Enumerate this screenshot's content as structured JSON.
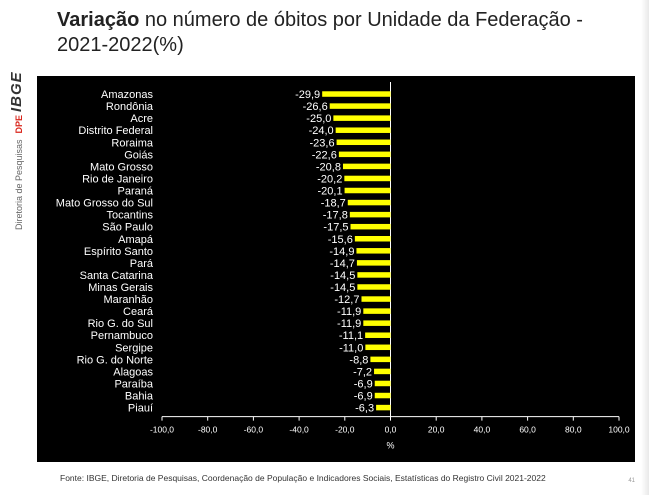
{
  "header": {
    "title_bold": "Variação",
    "title_rest": " no número de óbitos por Unidade da Federação - 2021-2022(%)"
  },
  "sidebar": {
    "logo_text": "IBGE",
    "directorate": "Diretoria de Pesquisas",
    "dpe": "DPE"
  },
  "footer": {
    "source": "Fonte: IBGE, Diretoria de Pesquisas, Coordenação de População e Indicadores Sociais, Estatísticas do Registro Civil 2021-2022",
    "page": "41"
  },
  "colors": {
    "bar": "#ffff00",
    "background": "#000000",
    "text": "#ffffff"
  },
  "chart_data": {
    "type": "bar",
    "orientation": "horizontal",
    "title": "Variação no número de óbitos por Unidade da Federação - 2021-2022(%)",
    "xlabel": "%",
    "ylabel": "",
    "xlim": [
      -100,
      100
    ],
    "xticks": [
      "-100,0",
      "-80,0",
      "-60,0",
      "-40,0",
      "-20,0",
      "0,0",
      "20,0",
      "40,0",
      "60,0",
      "80,0",
      "100,0"
    ],
    "tick_values": [
      -100,
      -80,
      -60,
      -40,
      -20,
      0,
      20,
      40,
      60,
      80,
      100
    ],
    "grid": false,
    "categories": [
      "Amazonas",
      "Rondônia",
      "Acre",
      "Distrito Federal",
      "Roraima",
      "Goiás",
      "Mato Grosso",
      "Rio de Janeiro",
      "Paraná",
      "Mato Grosso do Sul",
      "Tocantins",
      "São Paulo",
      "Amapá",
      "Espírito Santo",
      "Pará",
      "Santa Catarina",
      "Minas Gerais",
      "Maranhão",
      "Ceará",
      "Rio G. do Sul",
      "Pernambuco",
      "Sergipe",
      "Rio G. do Norte",
      "Alagoas",
      "Paraíba",
      "Bahia",
      "Piauí"
    ],
    "values": [
      -29.9,
      -26.6,
      -25.0,
      -24.0,
      -23.6,
      -22.6,
      -20.8,
      -20.2,
      -20.1,
      -18.7,
      -17.8,
      -17.5,
      -15.6,
      -14.9,
      -14.7,
      -14.5,
      -14.5,
      -12.7,
      -11.9,
      -11.9,
      -11.1,
      -11.0,
      -8.8,
      -7.2,
      -6.9,
      -6.9,
      -6.3
    ],
    "labels": [
      "-29,9",
      "-26,6",
      "-25,0",
      "-24,0",
      "-23,6",
      "-22,6",
      "-20,8",
      "-20,2",
      "-20,1",
      "-18,7",
      "-17,8",
      "-17,5",
      "-15,6",
      "-14,9",
      "-14,7",
      "-14,5",
      "-14,5",
      "-12,7",
      "-11,9",
      "-11,9",
      "-11,1",
      "-11,0",
      "-8,8",
      "-7,2",
      "-6,9",
      "-6,9",
      "-6,3"
    ]
  }
}
